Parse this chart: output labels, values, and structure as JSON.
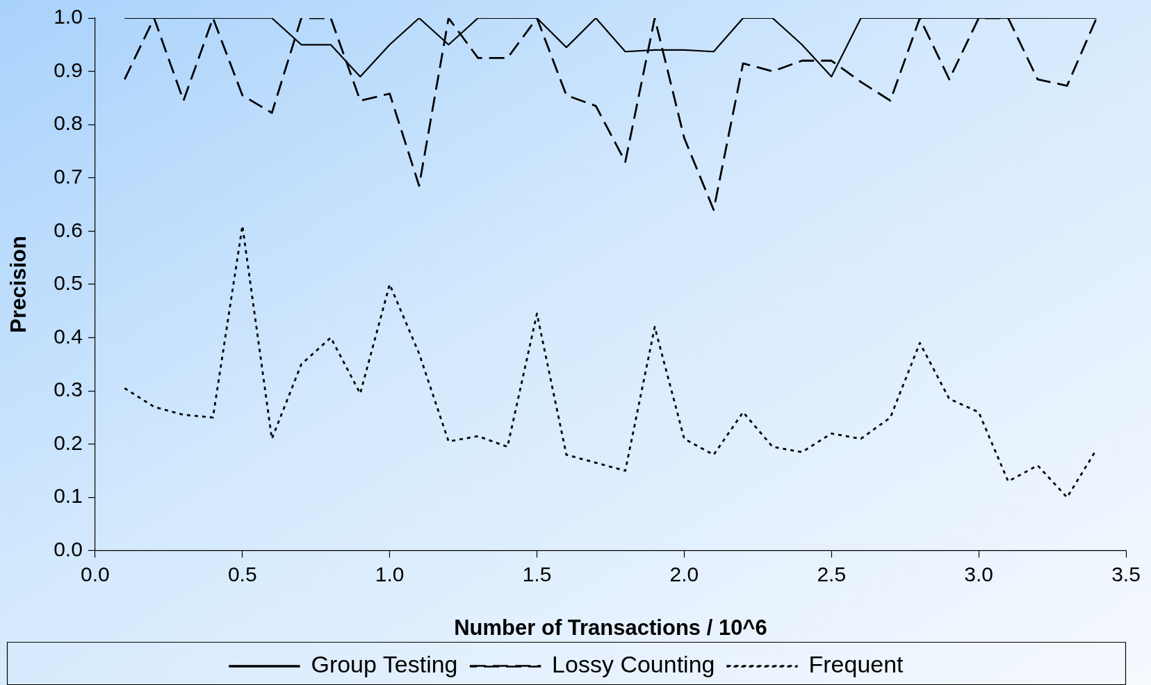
{
  "chart_data": {
    "type": "line",
    "xlabel": "Number of Transactions / 10^6",
    "ylabel": "Precision",
    "x": [
      0.1,
      0.2,
      0.3,
      0.4,
      0.5,
      0.6,
      0.7,
      0.8,
      0.9,
      1.0,
      1.1,
      1.2,
      1.3,
      1.4,
      1.5,
      1.6,
      1.7,
      1.8,
      1.9,
      2.0,
      2.1,
      2.2,
      2.3,
      2.4,
      2.5,
      2.6,
      2.7,
      2.8,
      2.9,
      3.0,
      3.1,
      3.2,
      3.3,
      3.4
    ],
    "series": [
      {
        "name": "Group Testing",
        "color": "#000000",
        "line_style": "solid",
        "values": [
          1,
          1,
          1,
          1,
          1,
          1,
          0.95,
          0.95,
          0.89,
          0.95,
          1,
          0.95,
          1,
          1,
          1,
          0.945,
          1,
          0.937,
          0.94,
          0.94,
          0.937,
          1,
          1,
          0.95,
          0.89,
          1,
          1,
          1,
          1,
          1,
          1,
          1,
          1,
          1
        ]
      },
      {
        "name": "Lossy Counting",
        "color": "#000000",
        "line_style": "dashed",
        "values": [
          0.885,
          1,
          0.845,
          1,
          0.855,
          0.822,
          1,
          1,
          0.845,
          0.858,
          0.685,
          1,
          0.925,
          0.925,
          1,
          0.855,
          0.835,
          0.73,
          1,
          0.775,
          0.64,
          0.915,
          0.9,
          0.92,
          0.92,
          0.88,
          0.845,
          1,
          0.885,
          1,
          1,
          0.885,
          0.873,
          1
        ]
      },
      {
        "name": "Frequent",
        "color": "#000000",
        "line_style": "dotted",
        "values": [
          0.305,
          0.27,
          0.255,
          0.25,
          0.61,
          0.21,
          0.35,
          0.4,
          0.295,
          0.5,
          0.37,
          0.205,
          0.215,
          0.195,
          0.445,
          0.18,
          0.165,
          0.15,
          0.42,
          0.21,
          0.18,
          0.26,
          0.195,
          0.185,
          0.22,
          0.21,
          0.25,
          0.39,
          0.285,
          0.26,
          0.13,
          0.16,
          0.1,
          0.19
        ]
      }
    ],
    "xlim": [
      0,
      3.5
    ],
    "xticks": [
      {
        "value": 0,
        "label": "0.0"
      },
      {
        "value": 0.5,
        "label": "0.5"
      },
      {
        "value": 1,
        "label": "1.0"
      },
      {
        "value": 1.5,
        "label": "1.5"
      },
      {
        "value": 2,
        "label": "2.0"
      },
      {
        "value": 2.5,
        "label": "2.5"
      },
      {
        "value": 3,
        "label": "3.0"
      },
      {
        "value": 3.5,
        "label": "3.5"
      }
    ],
    "ylim": [
      0,
      1
    ],
    "yticks": [
      {
        "value": 0,
        "label": "0.0"
      },
      {
        "value": 0.1,
        "label": "0.1"
      },
      {
        "value": 0.2,
        "label": "0.2"
      },
      {
        "value": 0.3,
        "label": "0.3"
      },
      {
        "value": 0.4,
        "label": "0.4"
      },
      {
        "value": 0.5,
        "label": "0.5"
      },
      {
        "value": 0.6,
        "label": "0.6"
      },
      {
        "value": 0.7,
        "label": "0.7"
      },
      {
        "value": 0.8,
        "label": "0.8"
      },
      {
        "value": 0.9,
        "label": "0.9"
      },
      {
        "value": 1,
        "label": "1.0"
      }
    ],
    "grid": false,
    "legend": "bottom",
    "marker": "none"
  }
}
